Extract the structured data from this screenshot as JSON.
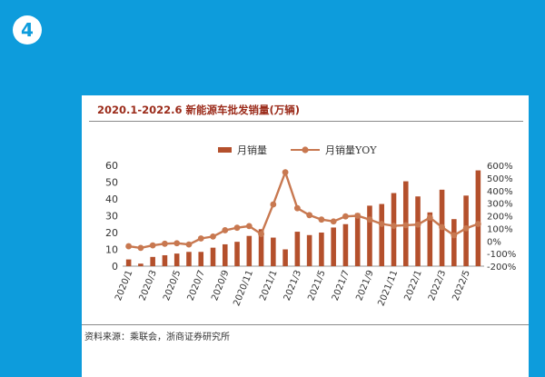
{
  "slide": {
    "number": "4"
  },
  "source_note": "资料来源：乘联会，浙商证券研究所",
  "colors": {
    "background": "#0d9cdc",
    "bar": "#b4502c",
    "line": "#c87850",
    "title": "#9b2b1a"
  },
  "chart_data": {
    "type": "bar",
    "title": "2020.1-2022.6 新能源车批发销量(万辆)",
    "legend_position": "top",
    "x": [
      "2020/1",
      "2020/2",
      "2020/3",
      "2020/4",
      "2020/5",
      "2020/6",
      "2020/7",
      "2020/8",
      "2020/9",
      "2020/10",
      "2020/11",
      "2020/12",
      "2021/1",
      "2021/2",
      "2021/3",
      "2021/4",
      "2021/5",
      "2021/6",
      "2021/7",
      "2021/8",
      "2021/9",
      "2021/10",
      "2021/11",
      "2021/12",
      "2022/1",
      "2022/2",
      "2022/3",
      "2022/4",
      "2022/5",
      "2022/6"
    ],
    "x_tick_labels": [
      "2020/1",
      "2020/3",
      "2020/5",
      "2020/7",
      "2020/9",
      "2020/11",
      "2021/1",
      "2021/3",
      "2021/5",
      "2021/7",
      "2021/9",
      "2021/11",
      "2022/1",
      "2022/3",
      "2022/5"
    ],
    "series": [
      {
        "name": "月销量",
        "type": "bar",
        "axis": "left",
        "values": [
          4,
          1.5,
          5.5,
          6.5,
          7.5,
          8.5,
          8.5,
          11,
          13,
          14.5,
          18,
          22,
          17,
          10,
          20.5,
          18.5,
          20,
          23,
          25,
          31.5,
          36,
          37,
          43.5,
          50.5,
          41.5,
          32,
          45.5,
          28,
          42,
          57
        ]
      },
      {
        "name": "月销量YOY",
        "type": "line",
        "axis": "right",
        "values": [
          -42,
          -55,
          -35,
          -22,
          -18,
          -28,
          20,
          35,
          85,
          105,
          118,
          55,
          290,
          545,
          260,
          205,
          170,
          155,
          195,
          200,
          170,
          135,
          120,
          125,
          130,
          185,
          110,
          45,
          100,
          135
        ]
      }
    ],
    "y_left": {
      "min": 0,
      "max": 60,
      "ticks": [
        "0",
        "10",
        "20",
        "30",
        "40",
        "50",
        "60"
      ]
    },
    "y_right": {
      "min": -200,
      "max": 600,
      "ticks": [
        "-200%",
        "-100%",
        "0%",
        "100%",
        "200%",
        "300%",
        "400%",
        "500%",
        "600%"
      ]
    }
  }
}
